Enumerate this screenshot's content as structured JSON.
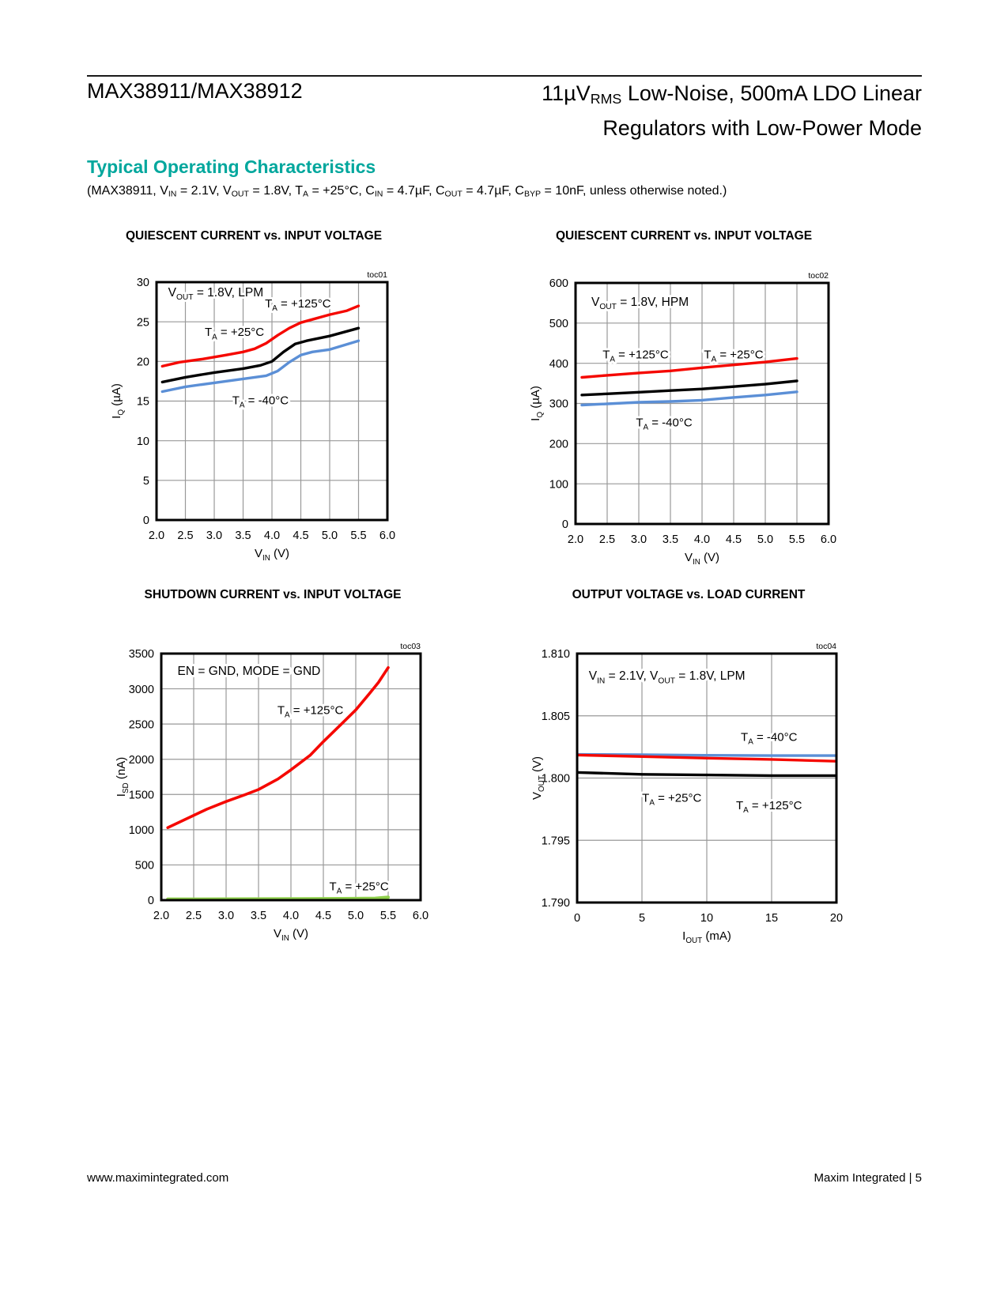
{
  "page": {
    "header_left": "MAX38911/MAX38912",
    "header_right_line1_segments": [
      {
        "t": "11µV"
      },
      {
        "t": "RMS",
        "sub": true
      },
      {
        "t": " Low-Noise, 500mA LDO Linear"
      }
    ],
    "header_right_line2": "Regulators with Low-Power Mode",
    "section_title": "Typical Operating Characteristics",
    "conditions_segments": [
      {
        "t": "(MAX38911, V"
      },
      {
        "t": "IN",
        "sub": true
      },
      {
        "t": " = 2.1V, V"
      },
      {
        "t": "OUT",
        "sub": true
      },
      {
        "t": " = 1.8V, T"
      },
      {
        "t": "A",
        "sub": true
      },
      {
        "t": " = +25°C, C"
      },
      {
        "t": "IN",
        "sub": true
      },
      {
        "t": " = 4.7µF, C"
      },
      {
        "t": "OUT",
        "sub": true
      },
      {
        "t": " = 4.7µF, C"
      },
      {
        "t": "BYP",
        "sub": true
      },
      {
        "t": " = 10nF, unless otherwise noted.)"
      }
    ],
    "footer_left": "www.maximintegrated.com",
    "footer_right": "Maxim Integrated | 5"
  },
  "colors": {
    "accent_teal": "#00A79D",
    "curve_red": "#F50800",
    "curve_black": "#000000",
    "curve_blue": "#5B8FD6",
    "curve_green": "#8FD04C",
    "grid": "#999999"
  },
  "chart_data": [
    {
      "id": "toc01",
      "type": "line",
      "title": "QUIESCENT CURRENT vs. INPUT VOLTAGE",
      "toc": "toc01",
      "xlim": [
        2.0,
        6.0
      ],
      "ylim": [
        0,
        30
      ],
      "xtick_values": [
        2.0,
        2.5,
        3.0,
        3.5,
        4.0,
        4.5,
        5.0,
        5.5,
        6.0
      ],
      "xtick_labels": [
        "2.0",
        "2.5",
        "3.0",
        "3.5",
        "4.0",
        "4.5",
        "5.0",
        "5.5",
        "6.0"
      ],
      "ytick_values": [
        0,
        5,
        10,
        15,
        20,
        25,
        30
      ],
      "ytick_labels": [
        "0",
        "5",
        "10",
        "15",
        "20",
        "25",
        "30"
      ],
      "xlabel_segments": [
        {
          "t": "V"
        },
        {
          "t": "IN",
          "sub": true
        },
        {
          "t": " (V)"
        }
      ],
      "ylabel_segments": [
        {
          "t": "I"
        },
        {
          "t": "Q",
          "sub": true
        },
        {
          "t": " (µA)"
        }
      ],
      "annotations": [
        {
          "x": 2.2,
          "y": 28.2,
          "anchor": "start",
          "color": "#000000",
          "segments": [
            {
              "t": "V"
            },
            {
              "t": "OUT",
              "sub": true
            },
            {
              "t": " = 1.8V, LPM"
            }
          ]
        }
      ],
      "series": [
        {
          "name": "TA = +125°C",
          "color": "#F50800",
          "width": 3.4,
          "points": [
            [
              2.1,
              19.4
            ],
            [
              2.4,
              19.9
            ],
            [
              2.8,
              20.3
            ],
            [
              3.2,
              20.8
            ],
            [
              3.5,
              21.2
            ],
            [
              3.7,
              21.6
            ],
            [
              3.9,
              22.3
            ],
            [
              4.1,
              23.3
            ],
            [
              4.3,
              24.2
            ],
            [
              4.5,
              24.9
            ],
            [
              4.7,
              25.3
            ],
            [
              5.0,
              25.9
            ],
            [
              5.3,
              26.4
            ],
            [
              5.5,
              27.0
            ]
          ],
          "label": {
            "x": 4.45,
            "y": 26.8,
            "segments": [
              {
                "t": "T"
              },
              {
                "t": "A",
                "sub": true
              },
              {
                "t": " = +125°C"
              }
            ]
          }
        },
        {
          "name": "TA = +25°C",
          "color": "#000000",
          "width": 3.4,
          "points": [
            [
              2.1,
              17.4
            ],
            [
              2.5,
              18.0
            ],
            [
              3.0,
              18.6
            ],
            [
              3.5,
              19.1
            ],
            [
              3.8,
              19.5
            ],
            [
              4.0,
              20.0
            ],
            [
              4.2,
              21.2
            ],
            [
              4.4,
              22.2
            ],
            [
              4.6,
              22.6
            ],
            [
              4.8,
              22.9
            ],
            [
              5.0,
              23.2
            ],
            [
              5.5,
              24.2
            ]
          ],
          "label": {
            "x": 3.35,
            "y": 23.2,
            "segments": [
              {
                "t": "T"
              },
              {
                "t": "A",
                "sub": true
              },
              {
                "t": " = +25°C"
              }
            ]
          }
        },
        {
          "name": "TA = -40°C",
          "color": "#5B8FD6",
          "width": 3.4,
          "points": [
            [
              2.1,
              16.2
            ],
            [
              2.5,
              16.8
            ],
            [
              3.0,
              17.3
            ],
            [
              3.5,
              17.8
            ],
            [
              3.9,
              18.2
            ],
            [
              4.1,
              18.8
            ],
            [
              4.3,
              19.9
            ],
            [
              4.5,
              20.8
            ],
            [
              4.7,
              21.2
            ],
            [
              5.0,
              21.5
            ],
            [
              5.5,
              22.6
            ]
          ],
          "label": {
            "x": 3.8,
            "y": 14.62,
            "segments": [
              {
                "t": "T"
              },
              {
                "t": "A",
                "sub": true
              },
              {
                "t": " = -40°C"
              }
            ]
          }
        }
      ]
    },
    {
      "id": "toc02",
      "type": "line",
      "title": "QUIESCENT CURRENT vs. INPUT VOLTAGE",
      "toc": "toc02",
      "xlim": [
        2.0,
        6.0
      ],
      "ylim": [
        0,
        600
      ],
      "xtick_values": [
        2.0,
        2.5,
        3.0,
        3.5,
        4.0,
        4.5,
        5.0,
        5.5,
        6.0
      ],
      "xtick_labels": [
        "2.0",
        "2.5",
        "3.0",
        "3.5",
        "4.0",
        "4.5",
        "5.0",
        "5.5",
        "6.0"
      ],
      "ytick_values": [
        0,
        100,
        200,
        300,
        400,
        500,
        600
      ],
      "ytick_labels": [
        "0",
        "100",
        "200",
        "300",
        "400",
        "500",
        "600"
      ],
      "xlabel_segments": [
        {
          "t": "V"
        },
        {
          "t": "IN",
          "sub": true
        },
        {
          "t": " (V)"
        }
      ],
      "ylabel_segments": [
        {
          "t": "I"
        },
        {
          "t": "Q",
          "sub": true
        },
        {
          "t": " (µA)"
        }
      ],
      "annotations": [
        {
          "x": 2.25,
          "y": 543,
          "anchor": "start",
          "color": "#000000",
          "segments": [
            {
              "t": "V"
            },
            {
              "t": "OUT",
              "sub": true
            },
            {
              "t": " = 1.8V, HPM"
            }
          ]
        }
      ],
      "series": [
        {
          "name": "TA = +125°C",
          "color": "#F50800",
          "width": 3.4,
          "points": [
            [
              2.1,
              365
            ],
            [
              2.5,
              370
            ],
            [
              3.0,
              376
            ],
            [
              3.5,
              381
            ],
            [
              4.0,
              389
            ],
            [
              4.5,
              396
            ],
            [
              5.0,
              403
            ],
            [
              5.5,
              412
            ]
          ],
          "label": {
            "x": 2.95,
            "y": 412,
            "segments": [
              {
                "t": "T"
              },
              {
                "t": "A",
                "sub": true
              },
              {
                "t": " = +125°C"
              }
            ]
          }
        },
        {
          "name": "TA = +25°C",
          "color": "#000000",
          "width": 3.4,
          "points": [
            [
              2.1,
              321
            ],
            [
              2.5,
              324
            ],
            [
              3.0,
              328
            ],
            [
              3.5,
              332
            ],
            [
              4.0,
              336
            ],
            [
              4.5,
              342
            ],
            [
              5.0,
              348
            ],
            [
              5.5,
              356
            ]
          ],
          "label": {
            "x": 4.5,
            "y": 412,
            "segments": [
              {
                "t": "T"
              },
              {
                "t": "A",
                "sub": true
              },
              {
                "t": " = +25°C"
              }
            ]
          }
        },
        {
          "name": "TA = -40°C",
          "color": "#5B8FD6",
          "width": 3.4,
          "points": [
            [
              2.1,
              296
            ],
            [
              2.5,
              299
            ],
            [
              3.0,
              303
            ],
            [
              3.5,
              305
            ],
            [
              4.0,
              308
            ],
            [
              4.5,
              315
            ],
            [
              5.0,
              321
            ],
            [
              5.5,
              329
            ]
          ],
          "label": {
            "x": 3.4,
            "y": 243,
            "segments": [
              {
                "t": "T"
              },
              {
                "t": "A",
                "sub": true
              },
              {
                "t": " = -40°C"
              }
            ]
          }
        }
      ]
    },
    {
      "id": "toc03",
      "type": "line",
      "title": "SHUTDOWN CURRENT vs. INPUT VOLTAGE",
      "toc": "toc03",
      "xlim": [
        2.0,
        6.0
      ],
      "ylim": [
        0,
        3500
      ],
      "xtick_values": [
        2.0,
        2.5,
        3.0,
        3.5,
        4.0,
        4.5,
        5.0,
        5.5,
        6.0
      ],
      "xtick_labels": [
        "2.0",
        "2.5",
        "3.0",
        "3.5",
        "4.0",
        "4.5",
        "5.0",
        "5.5",
        "6.0"
      ],
      "ytick_values": [
        0,
        500,
        1000,
        1500,
        2000,
        2500,
        3000,
        3500
      ],
      "ytick_labels": [
        "0",
        "500",
        "1000",
        "1500",
        "2000",
        "2500",
        "3000",
        "3500"
      ],
      "xlabel_segments": [
        {
          "t": "V"
        },
        {
          "t": "IN",
          "sub": true
        },
        {
          "t": " (V)"
        }
      ],
      "ylabel_segments": [
        {
          "t": "I"
        },
        {
          "t": "SD",
          "sub": true
        },
        {
          "t": " (nA)"
        }
      ],
      "annotations": [
        {
          "x": 2.25,
          "y": 3195,
          "anchor": "start",
          "color": "#000000",
          "segments": [
            {
              "t": "EN = GND, MODE = GND"
            }
          ]
        }
      ],
      "series": [
        {
          "name": "TA = +125°C",
          "color": "#F50800",
          "width": 3.6,
          "points": [
            [
              2.1,
              1030
            ],
            [
              2.4,
              1160
            ],
            [
              2.7,
              1290
            ],
            [
              3.0,
              1400
            ],
            [
              3.3,
              1500
            ],
            [
              3.5,
              1570
            ],
            [
              3.8,
              1720
            ],
            [
              4.0,
              1850
            ],
            [
              4.3,
              2060
            ],
            [
              4.5,
              2250
            ],
            [
              4.8,
              2520
            ],
            [
              5.0,
              2700
            ],
            [
              5.2,
              2920
            ],
            [
              5.35,
              3090
            ],
            [
              5.5,
              3300
            ]
          ],
          "label": {
            "x": 4.3,
            "y": 2640,
            "segments": [
              {
                "t": "T"
              },
              {
                "t": "A",
                "sub": true
              },
              {
                "t": " = +125°C"
              }
            ]
          }
        },
        {
          "name": "TA = +25°C",
          "color": "#8FD04C",
          "width": 4.2,
          "points": [
            [
              2.1,
              15
            ],
            [
              2.5,
              15
            ],
            [
              3.0,
              16
            ],
            [
              3.5,
              17
            ],
            [
              4.0,
              18
            ],
            [
              4.5,
              20
            ],
            [
              5.0,
              22
            ],
            [
              5.3,
              26
            ],
            [
              5.5,
              40
            ]
          ],
          "label": {
            "x": 5.05,
            "y": 140,
            "segments": [
              {
                "t": "T"
              },
              {
                "t": "A",
                "sub": true
              },
              {
                "t": " = +25°C"
              }
            ]
          }
        }
      ]
    },
    {
      "id": "toc04",
      "type": "line",
      "title": "OUTPUT VOLTAGE vs. LOAD CURRENT",
      "toc": "toc04",
      "xlim": [
        0,
        20
      ],
      "ylim": [
        1.79,
        1.81
      ],
      "xtick_values": [
        0,
        5,
        10,
        15,
        20
      ],
      "xtick_labels": [
        "0",
        "5",
        "10",
        "15",
        "20"
      ],
      "ytick_values": [
        1.79,
        1.795,
        1.8,
        1.805,
        1.81
      ],
      "ytick_labels": [
        "1.790",
        "1.795",
        "1.800",
        "1.805",
        "1.810"
      ],
      "xlabel_segments": [
        {
          "t": "I"
        },
        {
          "t": "OUT",
          "sub": true
        },
        {
          "t": " (mA)"
        }
      ],
      "ylabel_segments": [
        {
          "t": "V"
        },
        {
          "t": "OUT",
          "sub": true
        },
        {
          "t": " (V)"
        }
      ],
      "annotations": [
        {
          "x": 0.9,
          "y": 1.8079,
          "anchor": "start",
          "color": "#000000",
          "segments": [
            {
              "t": "V"
            },
            {
              "t": "IN",
              "sub": true
            },
            {
              "t": " = 2.1V, V"
            },
            {
              "t": "OUT",
              "sub": true
            },
            {
              "t": " = 1.8V, LPM"
            }
          ]
        }
      ],
      "series": [
        {
          "name": "TA = -40°C",
          "color": "#5B8FD6",
          "width": 3.4,
          "points": [
            [
              0,
              1.8019
            ],
            [
              5,
              1.80188
            ],
            [
              10,
              1.80183
            ],
            [
              15,
              1.8018
            ],
            [
              20,
              1.8018
            ]
          ],
          "label": {
            "x": 14.8,
            "y": 1.803,
            "segments": [
              {
                "t": "T"
              },
              {
                "t": "A",
                "sub": true
              },
              {
                "t": " = -40°C"
              }
            ]
          }
        },
        {
          "name": "TA = +125°C",
          "color": "#F50800",
          "width": 3.4,
          "points": [
            [
              0,
              1.80185
            ],
            [
              3,
              1.80178
            ],
            [
              6,
              1.8017
            ],
            [
              10,
              1.8016
            ],
            [
              15,
              1.8015
            ],
            [
              20,
              1.80135
            ]
          ],
          "label": {
            "x": 14.8,
            "y": 1.7975,
            "segments": [
              {
                "t": "T"
              },
              {
                "t": "A",
                "sub": true
              },
              {
                "t": " = +125°C"
              }
            ]
          }
        },
        {
          "name": "TA = +25°C",
          "color": "#000000",
          "width": 3.4,
          "points": [
            [
              0,
              1.80045
            ],
            [
              5,
              1.8003
            ],
            [
              10,
              1.80025
            ],
            [
              15,
              1.8002
            ],
            [
              20,
              1.8002
            ]
          ],
          "label": {
            "x": 7.3,
            "y": 1.7981,
            "segments": [
              {
                "t": "T"
              },
              {
                "t": "A",
                "sub": true
              },
              {
                "t": " = +25°C"
              }
            ]
          }
        }
      ]
    }
  ]
}
